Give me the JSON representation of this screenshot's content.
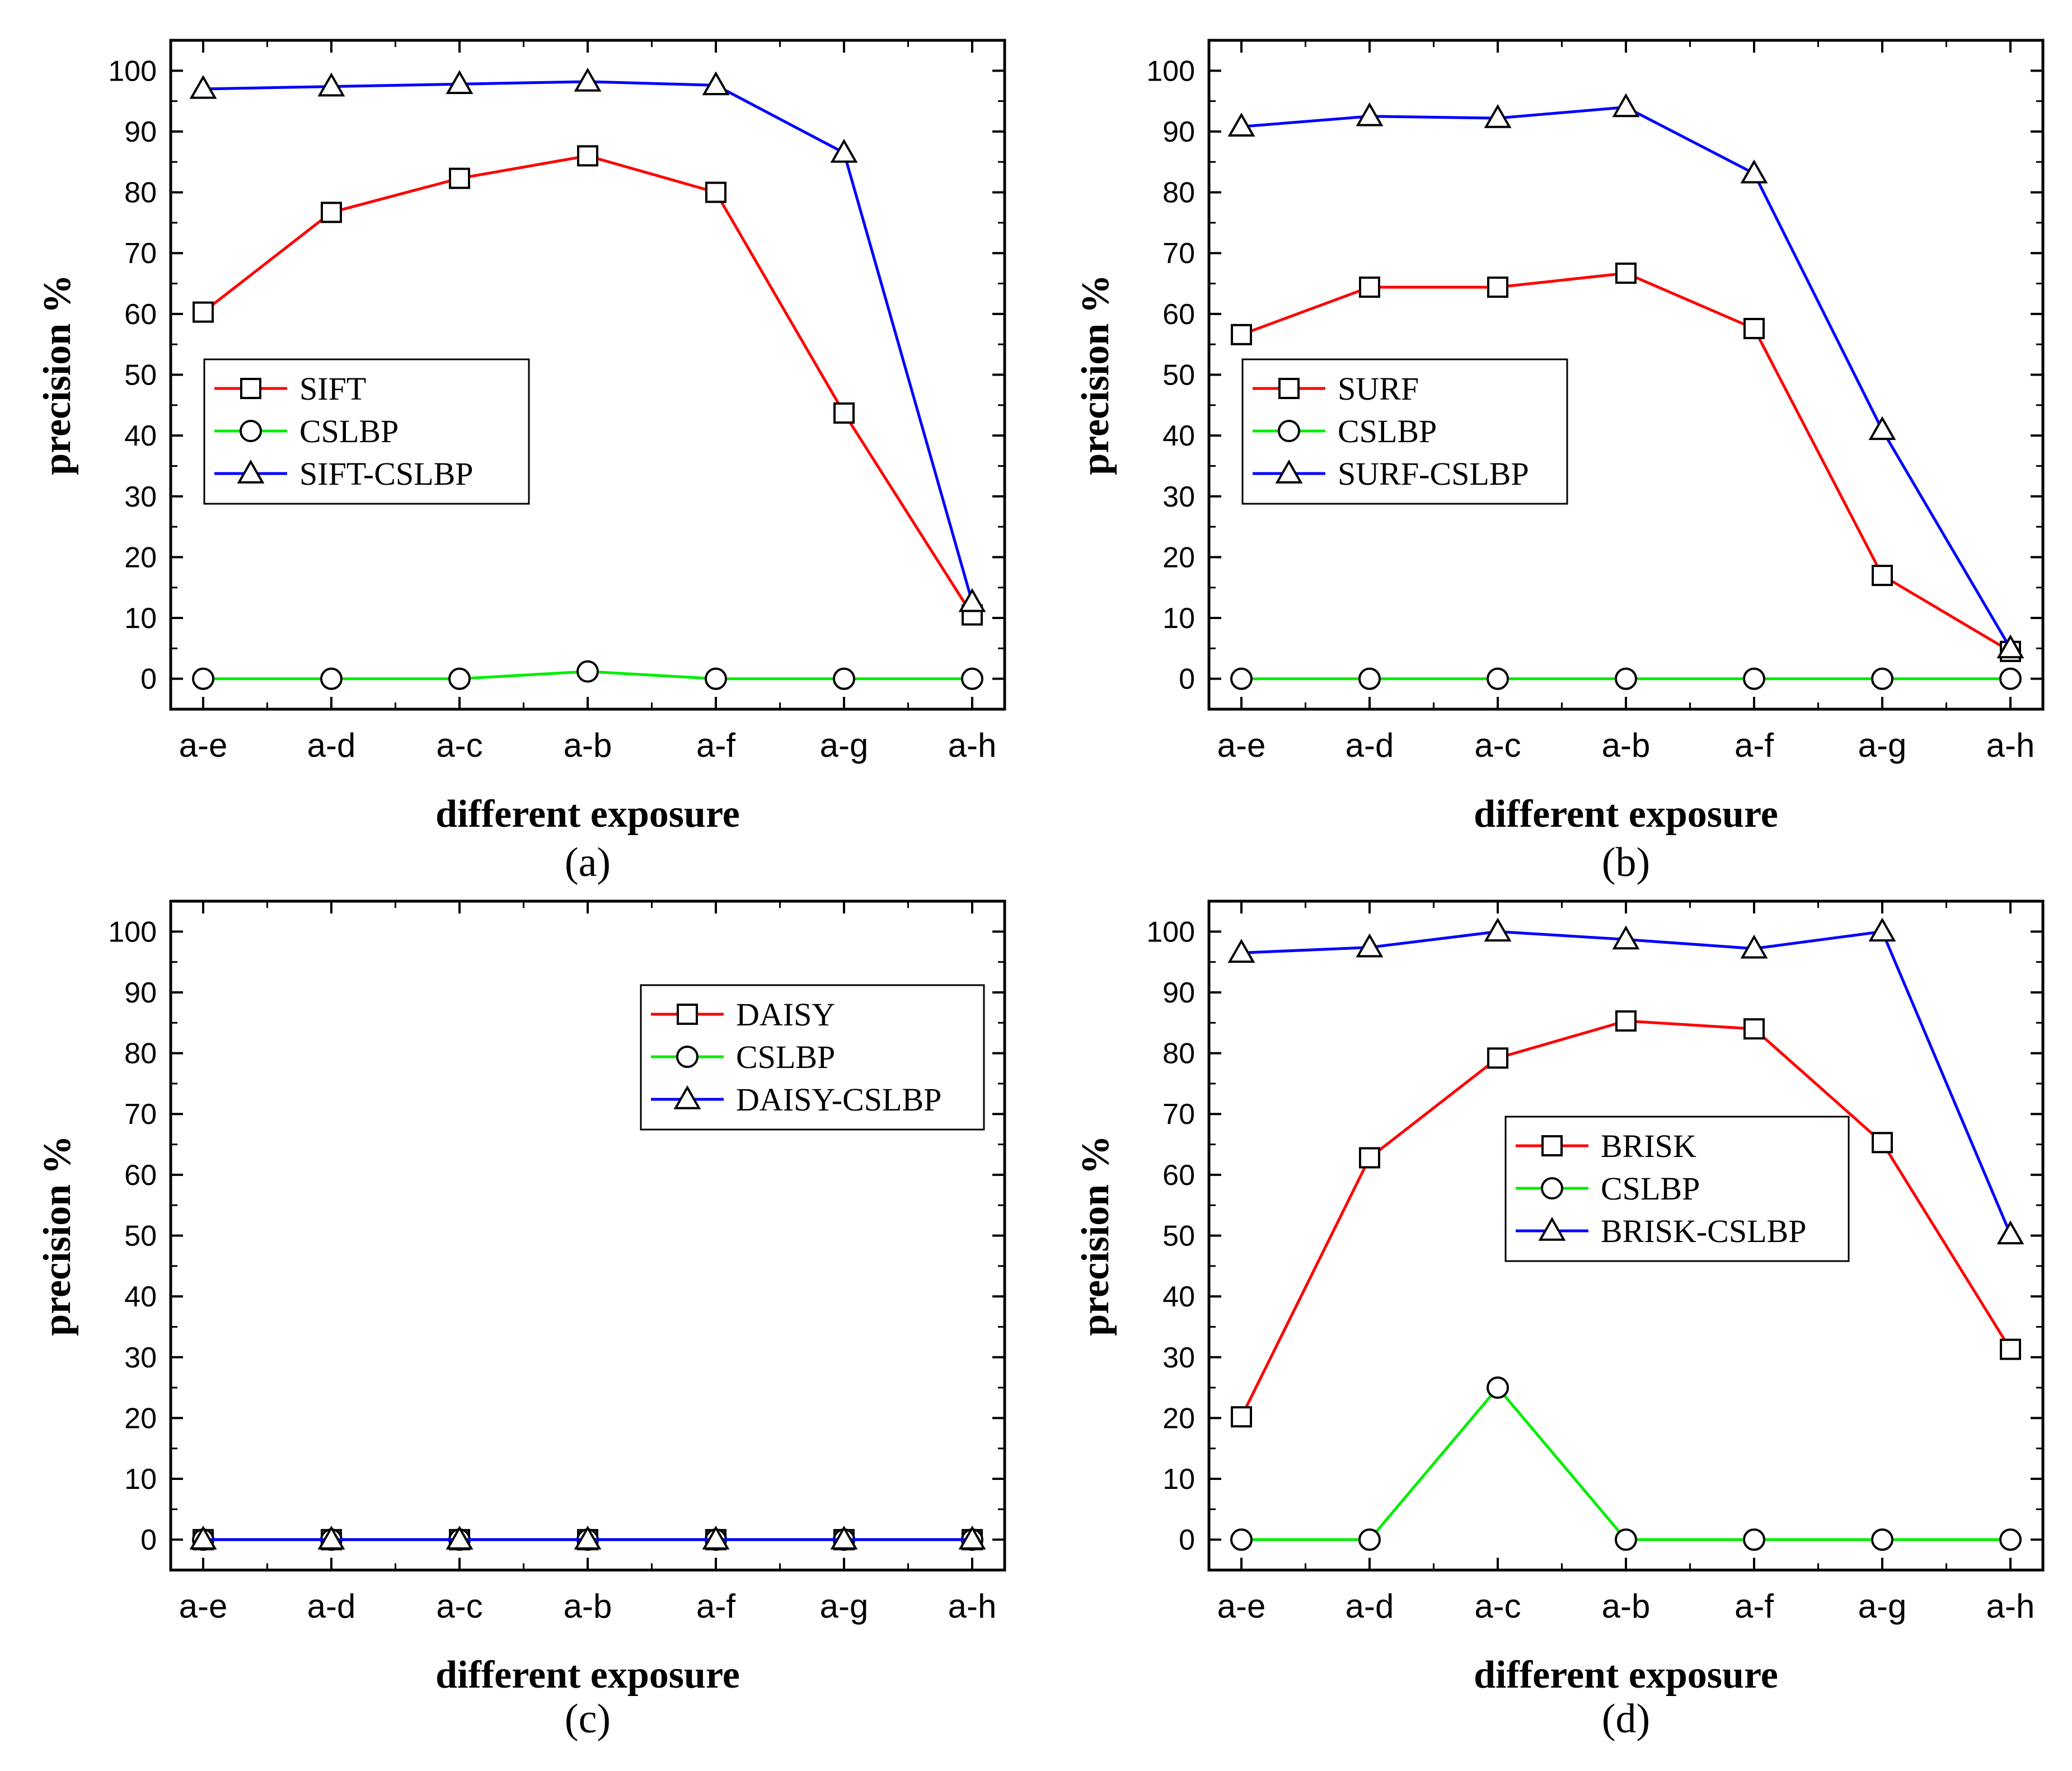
{
  "chart_data": [
    {
      "type": "line",
      "panel_label": "(a)",
      "panel_letter": "a",
      "categories": [
        "a-e",
        "a-d",
        "a-c",
        "a-b",
        "a-f",
        "a-g",
        "a-h"
      ],
      "xlabel": "different exposure",
      "ylabel": "precision %",
      "ylim": [
        -5,
        105
      ],
      "yticks": [
        0,
        10,
        20,
        30,
        40,
        50,
        60,
        70,
        80,
        90,
        100
      ],
      "legend_position": "middle-left",
      "series": [
        {
          "name": "SIFT",
          "color": "#ff0000",
          "marker": "square",
          "values": [
            60.3,
            76.7,
            82.3,
            86,
            80,
            43.7,
            10.5
          ]
        },
        {
          "name": "CSLBP",
          "color": "#00ee00",
          "marker": "circle",
          "values": [
            0,
            0,
            0,
            1.2,
            0,
            0,
            0
          ]
        },
        {
          "name": "SIFT-CSLBP",
          "color": "#0000ff",
          "marker": "triangle",
          "values": [
            97,
            97.4,
            97.8,
            98.2,
            97.6,
            86.5,
            12.6
          ]
        }
      ]
    },
    {
      "type": "line",
      "panel_label": "(b)",
      "panel_letter": "b",
      "categories": [
        "a-e",
        "a-d",
        "a-c",
        "a-b",
        "a-f",
        "a-g",
        "a-h"
      ],
      "xlabel": "different exposure",
      "ylabel": "precision %",
      "ylim": [
        -5,
        105
      ],
      "yticks": [
        0,
        10,
        20,
        30,
        40,
        50,
        60,
        70,
        80,
        90,
        100
      ],
      "legend_position": "middle-left",
      "series": [
        {
          "name": "SURF",
          "color": "#ff0000",
          "marker": "square",
          "values": [
            56.6,
            64.4,
            64.4,
            66.7,
            57.6,
            17,
            4.5
          ]
        },
        {
          "name": "CSLBP",
          "color": "#00ee00",
          "marker": "circle",
          "values": [
            0,
            0,
            0,
            0,
            0,
            0,
            0
          ]
        },
        {
          "name": "SURF-CSLBP",
          "color": "#0000ff",
          "marker": "triangle",
          "values": [
            90.8,
            92.5,
            92.2,
            94,
            83.1,
            40.9,
            5
          ]
        }
      ]
    },
    {
      "type": "line",
      "panel_label": "(c)",
      "panel_letter": "c",
      "categories": [
        "a-e",
        "a-d",
        "a-c",
        "a-b",
        "a-f",
        "a-g",
        "a-h"
      ],
      "xlabel": "different exposure",
      "ylabel": "precision %",
      "ylim": [
        -5,
        105
      ],
      "yticks": [
        0,
        10,
        20,
        30,
        40,
        50,
        60,
        70,
        80,
        90,
        100
      ],
      "legend_position": "upper-right",
      "series": [
        {
          "name": "DAISY",
          "color": "#ff0000",
          "marker": "square",
          "values": [
            0,
            0,
            0,
            0,
            0,
            0,
            0
          ]
        },
        {
          "name": "CSLBP",
          "color": "#00ee00",
          "marker": "circle",
          "values": [
            0,
            0,
            0,
            0,
            0,
            0,
            0
          ]
        },
        {
          "name": "DAISY-CSLBP",
          "color": "#0000ff",
          "marker": "triangle",
          "values": [
            0,
            0,
            0,
            0,
            0,
            0,
            0
          ]
        }
      ]
    },
    {
      "type": "line",
      "panel_label": "(d)",
      "panel_letter": "d",
      "categories": [
        "a-e",
        "a-d",
        "a-c",
        "a-b",
        "a-f",
        "a-g",
        "a-h"
      ],
      "xlabel": "different exposure",
      "ylabel": "precision %",
      "ylim": [
        -5,
        105
      ],
      "yticks": [
        0,
        10,
        20,
        30,
        40,
        50,
        60,
        70,
        80,
        90,
        100
      ],
      "legend_position": "center",
      "series": [
        {
          "name": "BRISK",
          "color": "#ff0000",
          "marker": "square",
          "values": [
            20.2,
            62.8,
            79.2,
            85.3,
            84,
            65.3,
            31.3
          ]
        },
        {
          "name": "CSLBP",
          "color": "#00ee00",
          "marker": "circle",
          "values": [
            0,
            0,
            25,
            0,
            0,
            0,
            0
          ]
        },
        {
          "name": "BRISK-CSLBP",
          "color": "#0000ff",
          "marker": "triangle",
          "values": [
            96.5,
            97.4,
            100,
            98.7,
            97.2,
            100,
            50.2
          ]
        }
      ]
    }
  ]
}
